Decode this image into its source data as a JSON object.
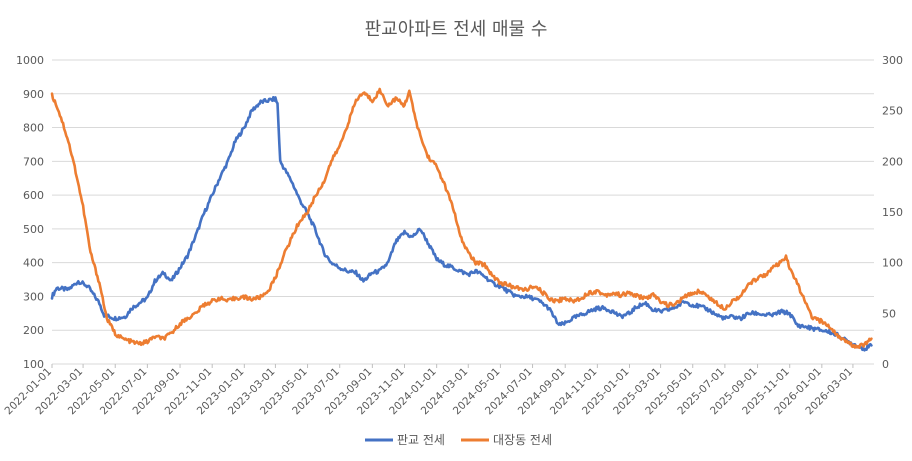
{
  "chart_data": {
    "type": "line",
    "title": "판교아파트 전세 매물 수",
    "xlabel": "",
    "ylabel": "",
    "x_ticks": [
      "2022-01-01",
      "2022-03-01",
      "2022-05-01",
      "2022-07-01",
      "2022-09-01",
      "2022-11-01",
      "2023-01-01",
      "2023-03-01",
      "2023-05-01",
      "2023-07-01",
      "2023-09-01",
      "2023-11-01",
      "2024-01-01",
      "2024-03-01",
      "2024-05-01",
      "2024-07-01",
      "2024-09-01",
      "2024-11-01",
      "2025-01-01",
      "2025-03-01",
      "2025-05-01",
      "2025-07-01",
      "2025-09-01",
      "2025-11-01",
      "2026-01-01",
      "2026-03-01"
    ],
    "y_left": {
      "min": 100,
      "max": 1000,
      "step": 100,
      "ticks": [
        "1000",
        "900",
        "800",
        "700",
        "600",
        "500",
        "400",
        "300",
        "200",
        "100"
      ]
    },
    "y_right": {
      "min": 0,
      "max": 300,
      "step": 50,
      "ticks": [
        "300",
        "250",
        "200",
        "150",
        "100",
        "50",
        "0"
      ]
    },
    "x_range": [
      "2022-01-01",
      "2026-04-10"
    ],
    "grid": true,
    "legend_position": "bottom",
    "series": [
      {
        "name": "판교 전세",
        "axis": "left",
        "color": "#4472C4",
        "points": [
          [
            "2022-01-01",
            300
          ],
          [
            "2022-01-10",
            325
          ],
          [
            "2022-02-01",
            320
          ],
          [
            "2022-02-20",
            345
          ],
          [
            "2022-03-10",
            330
          ],
          [
            "2022-04-01",
            280
          ],
          [
            "2022-04-10",
            245
          ],
          [
            "2022-05-01",
            235
          ],
          [
            "2022-05-20",
            240
          ],
          [
            "2022-06-01",
            265
          ],
          [
            "2022-06-20",
            285
          ],
          [
            "2022-07-01",
            295
          ],
          [
            "2022-07-15",
            345
          ],
          [
            "2022-08-01",
            370
          ],
          [
            "2022-08-15",
            345
          ],
          [
            "2022-09-01",
            385
          ],
          [
            "2022-09-15",
            420
          ],
          [
            "2022-10-01",
            480
          ],
          [
            "2022-10-15",
            540
          ],
          [
            "2022-11-01",
            600
          ],
          [
            "2022-11-15",
            650
          ],
          [
            "2022-12-01",
            700
          ],
          [
            "2022-12-15",
            760
          ],
          [
            "2023-01-01",
            800
          ],
          [
            "2023-01-15",
            850
          ],
          [
            "2023-02-01",
            875
          ],
          [
            "2023-02-15",
            880
          ],
          [
            "2023-03-01",
            885
          ],
          [
            "2023-03-05",
            870
          ],
          [
            "2023-03-10",
            700
          ],
          [
            "2023-04-01",
            640
          ],
          [
            "2023-04-15",
            590
          ],
          [
            "2023-05-01",
            545
          ],
          [
            "2023-05-15",
            500
          ],
          [
            "2023-06-01",
            430
          ],
          [
            "2023-06-15",
            400
          ],
          [
            "2023-07-01",
            385
          ],
          [
            "2023-07-15",
            375
          ],
          [
            "2023-08-01",
            370
          ],
          [
            "2023-08-15",
            345
          ],
          [
            "2023-09-01",
            370
          ],
          [
            "2023-09-15",
            375
          ],
          [
            "2023-10-01",
            400
          ],
          [
            "2023-10-15",
            460
          ],
          [
            "2023-11-01",
            490
          ],
          [
            "2023-11-15",
            475
          ],
          [
            "2023-12-01",
            500
          ],
          [
            "2023-12-15",
            460
          ],
          [
            "2024-01-01",
            410
          ],
          [
            "2024-01-15",
            395
          ],
          [
            "2024-02-01",
            385
          ],
          [
            "2024-02-15",
            375
          ],
          [
            "2024-03-01",
            365
          ],
          [
            "2024-03-15",
            375
          ],
          [
            "2024-04-01",
            360
          ],
          [
            "2024-04-15",
            340
          ],
          [
            "2024-05-01",
            330
          ],
          [
            "2024-05-15",
            315
          ],
          [
            "2024-06-01",
            300
          ],
          [
            "2024-06-15",
            300
          ],
          [
            "2024-07-01",
            295
          ],
          [
            "2024-07-15",
            285
          ],
          [
            "2024-08-01",
            265
          ],
          [
            "2024-08-20",
            215
          ],
          [
            "2024-09-01",
            220
          ],
          [
            "2024-09-15",
            235
          ],
          [
            "2024-10-01",
            245
          ],
          [
            "2024-10-15",
            255
          ],
          [
            "2024-11-01",
            265
          ],
          [
            "2024-11-15",
            265
          ],
          [
            "2024-12-01",
            255
          ],
          [
            "2024-12-15",
            240
          ],
          [
            "2025-01-01",
            250
          ],
          [
            "2025-01-15",
            270
          ],
          [
            "2025-02-01",
            280
          ],
          [
            "2025-02-15",
            260
          ],
          [
            "2025-03-01",
            255
          ],
          [
            "2025-03-15",
            260
          ],
          [
            "2025-04-01",
            270
          ],
          [
            "2025-04-15",
            285
          ],
          [
            "2025-05-01",
            275
          ],
          [
            "2025-05-15",
            270
          ],
          [
            "2025-06-01",
            260
          ],
          [
            "2025-06-15",
            245
          ],
          [
            "2025-07-01",
            235
          ],
          [
            "2025-07-15",
            240
          ],
          [
            "2025-08-01",
            235
          ],
          [
            "2025-08-15",
            250
          ],
          [
            "2025-09-01",
            250
          ],
          [
            "2025-09-15",
            245
          ],
          [
            "2025-10-01",
            245
          ],
          [
            "2025-10-15",
            255
          ],
          [
            "2025-11-01",
            250
          ],
          [
            "2025-11-15",
            215
          ],
          [
            "2025-12-01",
            210
          ],
          [
            "2025-12-15",
            205
          ],
          [
            "2026-01-01",
            200
          ],
          [
            "2026-01-15",
            195
          ],
          [
            "2026-02-01",
            185
          ],
          [
            "2026-02-15",
            170
          ],
          [
            "2026-03-01",
            160
          ],
          [
            "2026-03-15",
            150
          ],
          [
            "2026-03-25",
            145
          ],
          [
            "2026-04-05",
            155
          ]
        ]
      },
      {
        "name": "대장동 전세",
        "axis": "right",
        "color": "#ED7D31",
        "points": [
          [
            "2022-01-01",
            265
          ],
          [
            "2022-01-10",
            255
          ],
          [
            "2022-01-20",
            240
          ],
          [
            "2022-02-01",
            220
          ],
          [
            "2022-02-15",
            190
          ],
          [
            "2022-03-01",
            155
          ],
          [
            "2022-03-15",
            110
          ],
          [
            "2022-04-01",
            80
          ],
          [
            "2022-04-15",
            45
          ],
          [
            "2022-05-01",
            30
          ],
          [
            "2022-05-15",
            25
          ],
          [
            "2022-06-01",
            22
          ],
          [
            "2022-06-15",
            20
          ],
          [
            "2022-07-01",
            22
          ],
          [
            "2022-07-15",
            27
          ],
          [
            "2022-08-01",
            25
          ],
          [
            "2022-08-15",
            30
          ],
          [
            "2022-09-01",
            40
          ],
          [
            "2022-09-15",
            45
          ],
          [
            "2022-10-01",
            50
          ],
          [
            "2022-10-15",
            58
          ],
          [
            "2022-11-01",
            62
          ],
          [
            "2022-11-15",
            65
          ],
          [
            "2022-12-01",
            62
          ],
          [
            "2022-12-15",
            65
          ],
          [
            "2023-01-01",
            66
          ],
          [
            "2023-01-15",
            64
          ],
          [
            "2023-02-01",
            66
          ],
          [
            "2023-02-15",
            72
          ],
          [
            "2023-03-01",
            85
          ],
          [
            "2023-03-15",
            105
          ],
          [
            "2023-04-01",
            125
          ],
          [
            "2023-04-15",
            140
          ],
          [
            "2023-05-01",
            150
          ],
          [
            "2023-05-15",
            165
          ],
          [
            "2023-06-01",
            180
          ],
          [
            "2023-06-15",
            200
          ],
          [
            "2023-07-01",
            215
          ],
          [
            "2023-07-15",
            235
          ],
          [
            "2023-08-01",
            260
          ],
          [
            "2023-08-15",
            268
          ],
          [
            "2023-09-01",
            260
          ],
          [
            "2023-09-15",
            270
          ],
          [
            "2023-10-01",
            255
          ],
          [
            "2023-10-15",
            262
          ],
          [
            "2023-11-01",
            255
          ],
          [
            "2023-11-10",
            270
          ],
          [
            "2023-11-20",
            245
          ],
          [
            "2023-12-01",
            225
          ],
          [
            "2023-12-15",
            205
          ],
          [
            "2024-01-01",
            195
          ],
          [
            "2024-01-15",
            178
          ],
          [
            "2024-02-01",
            155
          ],
          [
            "2024-02-15",
            125
          ],
          [
            "2024-03-01",
            110
          ],
          [
            "2024-03-15",
            100
          ],
          [
            "2024-04-01",
            98
          ],
          [
            "2024-04-15",
            88
          ],
          [
            "2024-05-01",
            80
          ],
          [
            "2024-05-15",
            78
          ],
          [
            "2024-06-01",
            75
          ],
          [
            "2024-06-15",
            73
          ],
          [
            "2024-07-01",
            76
          ],
          [
            "2024-07-15",
            73
          ],
          [
            "2024-08-01",
            65
          ],
          [
            "2024-08-15",
            62
          ],
          [
            "2024-09-01",
            65
          ],
          [
            "2024-09-15",
            62
          ],
          [
            "2024-10-01",
            65
          ],
          [
            "2024-10-15",
            70
          ],
          [
            "2024-11-01",
            72
          ],
          [
            "2024-11-15",
            68
          ],
          [
            "2024-12-01",
            70
          ],
          [
            "2024-12-15",
            68
          ],
          [
            "2025-01-01",
            70
          ],
          [
            "2025-01-15",
            67
          ],
          [
            "2025-02-01",
            65
          ],
          [
            "2025-02-15",
            68
          ],
          [
            "2025-03-01",
            62
          ],
          [
            "2025-03-15",
            58
          ],
          [
            "2025-04-01",
            60
          ],
          [
            "2025-04-15",
            66
          ],
          [
            "2025-05-01",
            70
          ],
          [
            "2025-05-15",
            72
          ],
          [
            "2025-06-01",
            66
          ],
          [
            "2025-06-15",
            60
          ],
          [
            "2025-07-01",
            55
          ],
          [
            "2025-07-15",
            62
          ],
          [
            "2025-08-01",
            68
          ],
          [
            "2025-08-15",
            78
          ],
          [
            "2025-09-01",
            85
          ],
          [
            "2025-09-15",
            88
          ],
          [
            "2025-10-01",
            95
          ],
          [
            "2025-10-15",
            100
          ],
          [
            "2025-10-25",
            105
          ],
          [
            "2025-11-01",
            95
          ],
          [
            "2025-11-15",
            80
          ],
          [
            "2025-12-01",
            60
          ],
          [
            "2025-12-15",
            45
          ],
          [
            "2026-01-01",
            42
          ],
          [
            "2026-01-15",
            37
          ],
          [
            "2026-02-01",
            28
          ],
          [
            "2026-02-15",
            22
          ],
          [
            "2026-03-01",
            18
          ],
          [
            "2026-03-15",
            18
          ],
          [
            "2026-03-25",
            20
          ],
          [
            "2026-04-05",
            25
          ]
        ]
      }
    ]
  }
}
